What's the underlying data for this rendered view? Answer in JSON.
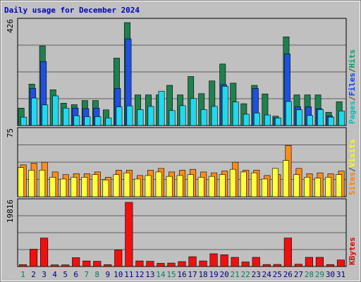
{
  "chart_data": {
    "type": "bar",
    "title": "Daily usage for December 2024",
    "categories": [
      "1",
      "2",
      "3",
      "4",
      "5",
      "6",
      "7",
      "8",
      "9",
      "10",
      "11",
      "12",
      "13",
      "14",
      "15",
      "16",
      "17",
      "18",
      "19",
      "20",
      "21",
      "22",
      "23",
      "24",
      "25",
      "26",
      "27",
      "28",
      "29",
      "30",
      "31"
    ],
    "weekend_days": [
      "1",
      "7",
      "8",
      "14",
      "15",
      "21",
      "22",
      "28",
      "29"
    ],
    "panels": [
      {
        "name": "hits-files-pages",
        "ymax_label": "426",
        "ylim": [
          0,
          426
        ],
        "legend": [
          "Pages",
          "/",
          "Files",
          "/",
          "Hits"
        ],
        "legend_colors": [
          "#00c0c0",
          "#404040",
          "#0040ff",
          "#404040",
          "#00a070"
        ],
        "series": [
          {
            "name": "Hits",
            "color": "#1f8050",
            "values": [
              71,
              169,
              325,
              146,
              91,
              85,
              102,
              102,
              64,
              275,
              420,
              125,
              125,
              125,
              164,
              125,
              200,
              130,
              182,
              251,
              173,
              89,
              164,
              129,
              38,
              362,
              125,
              125,
              125,
              54,
              97
            ]
          },
          {
            "name": "Files",
            "color": "#2050e0",
            "values": [
              0,
              151,
              261,
              0,
              0,
              71,
              69,
              71,
              0,
              151,
              354,
              0,
              0,
              0,
              0,
              0,
              0,
              0,
              0,
              167,
              0,
              0,
              151,
              0,
              31,
              292,
              76,
              76,
              69,
              39,
              0
            ]
          },
          {
            "name": "Pages",
            "color": "#20d8f0",
            "values": [
              34,
              112,
              84,
              121,
              71,
              40,
              36,
              36,
              31,
              76,
              80,
              65,
              78,
              140,
              61,
              81,
              110,
              65,
              78,
              160,
              96,
              46,
              51,
              43,
              31,
              98,
              64,
              41,
              65,
              34,
              59
            ]
          }
        ]
      },
      {
        "name": "visits-sites",
        "ymax_label": "75",
        "ylim": [
          0,
          75
        ],
        "legend": [
          "Sites",
          "/",
          "Visits"
        ],
        "legend_colors": [
          "#ff8000",
          "#404040",
          "#ffff00"
        ],
        "series": [
          {
            "name": "Visits",
            "color": "#ff8c1a",
            "values": [
              36,
              38,
              39,
              28,
              25,
              26,
              26,
              28,
              22,
              30,
              30,
              24,
              30,
              32,
              28,
              30,
              31,
              28,
              27,
              29,
              39,
              30,
              30,
              24,
              25,
              58,
              32,
              26,
              27,
              26,
              29
            ]
          },
          {
            "name": "Sites",
            "color": "#ffff40",
            "values": [
              33,
              30,
              30,
              22,
              20,
              22,
              22,
              25,
              19,
              25,
              27,
              20,
              24,
              28,
              23,
              24,
              25,
              22,
              23,
              25,
              31,
              28,
              27,
              20,
              32,
              41,
              25,
              22,
              21,
              22,
              25
            ]
          }
        ]
      },
      {
        "name": "kbytes",
        "ymax_label": "19816",
        "ylim": [
          0,
          19816
        ],
        "legend": [
          "KBytes"
        ],
        "legend_colors": [
          "#e00000"
        ],
        "series": [
          {
            "name": "KBytes",
            "color": "#f01010",
            "values": [
              560,
              5300,
              8700,
              500,
              500,
              2700,
              1700,
              1600,
              560,
              5100,
              19600,
              1700,
              1600,
              980,
              1050,
              1500,
              3000,
              1700,
              3900,
              3600,
              2800,
              1400,
              2800,
              620,
              640,
              8700,
              700,
              2800,
              2800,
              600,
              2000
            ]
          }
        ]
      }
    ]
  }
}
